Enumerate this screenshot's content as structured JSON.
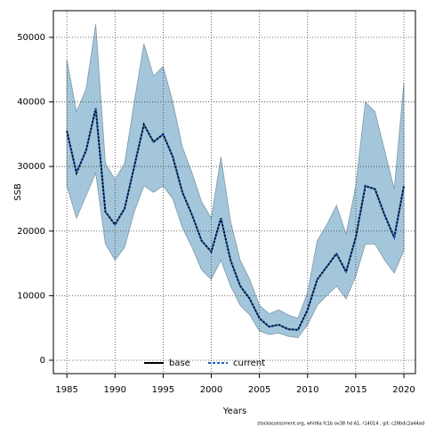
{
  "chart_data": {
    "type": "band-line",
    "xlabel": "Years",
    "ylabel": "SSB",
    "footer": "stockassessment.org, whit6a fc1b ov38 hd A1, r14014 , git: c28bdc2a44ad",
    "x": [
      1985,
      1986,
      1987,
      1988,
      1989,
      1990,
      1991,
      1992,
      1993,
      1994,
      1995,
      1996,
      1997,
      1998,
      1999,
      2000,
      2001,
      2002,
      2003,
      2004,
      2005,
      2006,
      2007,
      2008,
      2009,
      2010,
      2011,
      2012,
      2013,
      2014,
      2015,
      2016,
      2017,
      2018,
      2019,
      2020
    ],
    "upper": [
      46500,
      38500,
      42000,
      52000,
      30500,
      28000,
      30500,
      40000,
      49000,
      44000,
      45500,
      40000,
      33000,
      29000,
      24500,
      22000,
      31500,
      21500,
      15500,
      12500,
      8500,
      7200,
      7800,
      7000,
      6500,
      10500,
      18500,
      21000,
      24000,
      19500,
      27000,
      40000,
      38500,
      32500,
      26500,
      43000
    ],
    "lower": [
      27000,
      22000,
      25500,
      29000,
      18000,
      15500,
      17500,
      23000,
      27000,
      26000,
      27000,
      25000,
      20500,
      17500,
      14000,
      12500,
      15500,
      11500,
      8500,
      7000,
      4500,
      4000,
      4200,
      3700,
      3500,
      5500,
      8500,
      10000,
      11500,
      9500,
      13000,
      18000,
      18000,
      15500,
      13500,
      17000
    ],
    "band_color": "#a3c6da",
    "series": [
      {
        "name": "base",
        "color": "#000000",
        "values": [
          35500,
          29000,
          32500,
          39000,
          23000,
          21000,
          23500,
          30000,
          36500,
          33800,
          35000,
          31500,
          26000,
          22500,
          18500,
          16800,
          22000,
          15500,
          11500,
          9500,
          6500,
          5200,
          5500,
          4800,
          4700,
          7800,
          12500,
          14500,
          16500,
          13700,
          19000,
          27000,
          26500,
          22500,
          19000,
          27000
        ]
      },
      {
        "name": "current",
        "color": "#1f5fbf",
        "values": [
          35500,
          29000,
          32500,
          39000,
          23000,
          21000,
          23500,
          30000,
          36500,
          33800,
          35000,
          31500,
          26000,
          22500,
          18500,
          16800,
          22000,
          15500,
          11500,
          9500,
          6500,
          5200,
          5500,
          4800,
          4700,
          7800,
          12500,
          14500,
          16500,
          13700,
          19000,
          27000,
          26500,
          22500,
          19000,
          27000
        ]
      }
    ],
    "xlim": [
      1983.6,
      2021.2
    ],
    "xticks": [
      1985,
      1990,
      1995,
      2000,
      2005,
      2010,
      2015,
      2020
    ],
    "ylim": [
      -2070,
      54130
    ],
    "yticks": [
      0,
      10000,
      20000,
      30000,
      40000,
      50000
    ],
    "grid": true,
    "legend": "bottom"
  }
}
